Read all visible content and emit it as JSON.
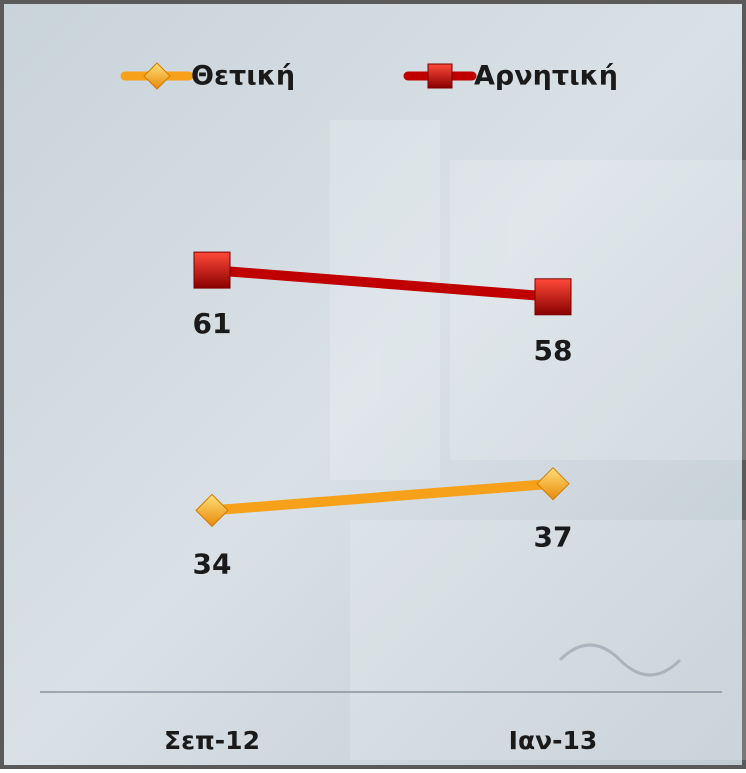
{
  "chart_data": {
    "type": "line",
    "categories": [
      "Σεπ-12",
      "Ιαν-13"
    ],
    "series": [
      {
        "name": "Θετική",
        "color": "#f7a11a",
        "values": [
          34,
          37
        ]
      },
      {
        "name": "Αρνητική",
        "color": "#c00000",
        "values": [
          61,
          58
        ]
      }
    ],
    "legend": "top"
  }
}
